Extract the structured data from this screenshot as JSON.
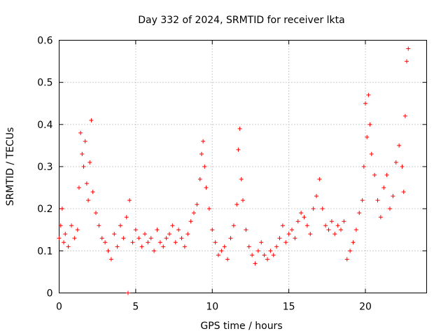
{
  "chart_data": {
    "type": "scatter",
    "title": "Day 332 of 2024, SRMTID for receiver lkta",
    "xlabel": "GPS time / hours",
    "ylabel": "SRMTID / TECUs",
    "xlim": [
      0,
      24
    ],
    "ylim": [
      0,
      0.6
    ],
    "xticks": [
      "0",
      "5",
      "10",
      "15",
      "20"
    ],
    "yticks": [
      "0",
      "0.1",
      "0.2",
      "0.3",
      "0.4",
      "0.5",
      "0.6"
    ],
    "grid": true,
    "marker": "+",
    "marker_color": "#ff0000",
    "series": [
      {
        "name": "SRMTID",
        "x": [
          0.0,
          0.1,
          0.2,
          0.3,
          0.4,
          0.6,
          0.8,
          1.0,
          1.2,
          1.3,
          1.4,
          1.5,
          1.6,
          1.7,
          1.8,
          1.9,
          2.0,
          2.1,
          2.2,
          2.4,
          2.6,
          2.8,
          3.0,
          3.2,
          3.4,
          3.6,
          3.8,
          4.0,
          4.2,
          4.4,
          4.5,
          4.6,
          4.8,
          5.0,
          5.2,
          5.4,
          5.6,
          5.8,
          6.0,
          6.2,
          6.4,
          6.6,
          6.8,
          7.0,
          7.2,
          7.4,
          7.6,
          7.8,
          8.0,
          8.2,
          8.4,
          8.6,
          8.8,
          9.0,
          9.2,
          9.3,
          9.4,
          9.5,
          9.6,
          9.8,
          10.0,
          10.2,
          10.4,
          10.6,
          10.8,
          11.0,
          11.2,
          11.4,
          11.6,
          11.7,
          11.8,
          11.9,
          12.0,
          12.2,
          12.4,
          12.6,
          12.8,
          13.0,
          13.2,
          13.4,
          13.6,
          13.8,
          14.0,
          14.2,
          14.4,
          14.6,
          14.8,
          15.0,
          15.2,
          15.4,
          15.6,
          15.8,
          16.0,
          16.2,
          16.4,
          16.6,
          16.8,
          17.0,
          17.2,
          17.4,
          17.6,
          17.8,
          18.0,
          18.2,
          18.4,
          18.6,
          18.8,
          19.0,
          19.2,
          19.4,
          19.6,
          19.8,
          19.9,
          20.0,
          20.1,
          20.2,
          20.3,
          20.4,
          20.6,
          20.8,
          21.0,
          21.2,
          21.4,
          21.6,
          21.8,
          22.0,
          22.2,
          22.4,
          22.5,
          22.6,
          22.7,
          22.8
        ],
        "y": [
          0.13,
          0.16,
          0.2,
          0.12,
          0.14,
          0.11,
          0.16,
          0.13,
          0.15,
          0.25,
          0.38,
          0.33,
          0.3,
          0.36,
          0.26,
          0.22,
          0.31,
          0.41,
          0.24,
          0.19,
          0.16,
          0.13,
          0.12,
          0.1,
          0.08,
          0.14,
          0.11,
          0.16,
          0.13,
          0.18,
          0.0,
          0.22,
          0.12,
          0.15,
          0.13,
          0.11,
          0.14,
          0.12,
          0.13,
          0.1,
          0.15,
          0.12,
          0.11,
          0.13,
          0.14,
          0.16,
          0.12,
          0.15,
          0.13,
          0.11,
          0.14,
          0.17,
          0.19,
          0.21,
          0.27,
          0.33,
          0.36,
          0.3,
          0.25,
          0.2,
          0.15,
          0.12,
          0.09,
          0.1,
          0.11,
          0.08,
          0.13,
          0.16,
          0.21,
          0.34,
          0.39,
          0.27,
          0.22,
          0.15,
          0.11,
          0.09,
          0.07,
          0.1,
          0.12,
          0.09,
          0.08,
          0.1,
          0.09,
          0.11,
          0.13,
          0.16,
          0.12,
          0.14,
          0.15,
          0.13,
          0.17,
          0.19,
          0.18,
          0.16,
          0.14,
          0.2,
          0.23,
          0.27,
          0.2,
          0.16,
          0.15,
          0.17,
          0.14,
          0.16,
          0.15,
          0.17,
          0.08,
          0.1,
          0.12,
          0.15,
          0.19,
          0.22,
          0.3,
          0.45,
          0.37,
          0.47,
          0.4,
          0.33,
          0.28,
          0.22,
          0.18,
          0.25,
          0.28,
          0.2,
          0.23,
          0.31,
          0.35,
          0.3,
          0.24,
          0.42,
          0.55,
          0.58
        ]
      }
    ]
  }
}
